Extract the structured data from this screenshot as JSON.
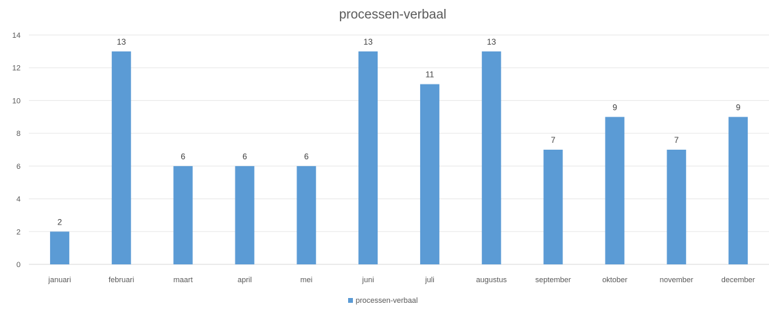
{
  "chart_data": {
    "type": "bar",
    "title": "processen-verbaal",
    "categories": [
      "januari",
      "februari",
      "maart",
      "april",
      "mei",
      "juni",
      "juli",
      "augustus",
      "september",
      "oktober",
      "november",
      "december"
    ],
    "series": [
      {
        "name": "processen-verbaal",
        "values": [
          2,
          13,
          6,
          6,
          6,
          13,
          11,
          13,
          7,
          9,
          7,
          9
        ],
        "color": "#5b9bd5"
      }
    ],
    "ylim": [
      0,
      14
    ],
    "yticks": [
      0,
      2,
      4,
      6,
      8,
      10,
      12,
      14
    ],
    "grid": true,
    "data_labels": true,
    "legend": "bottom-center"
  }
}
